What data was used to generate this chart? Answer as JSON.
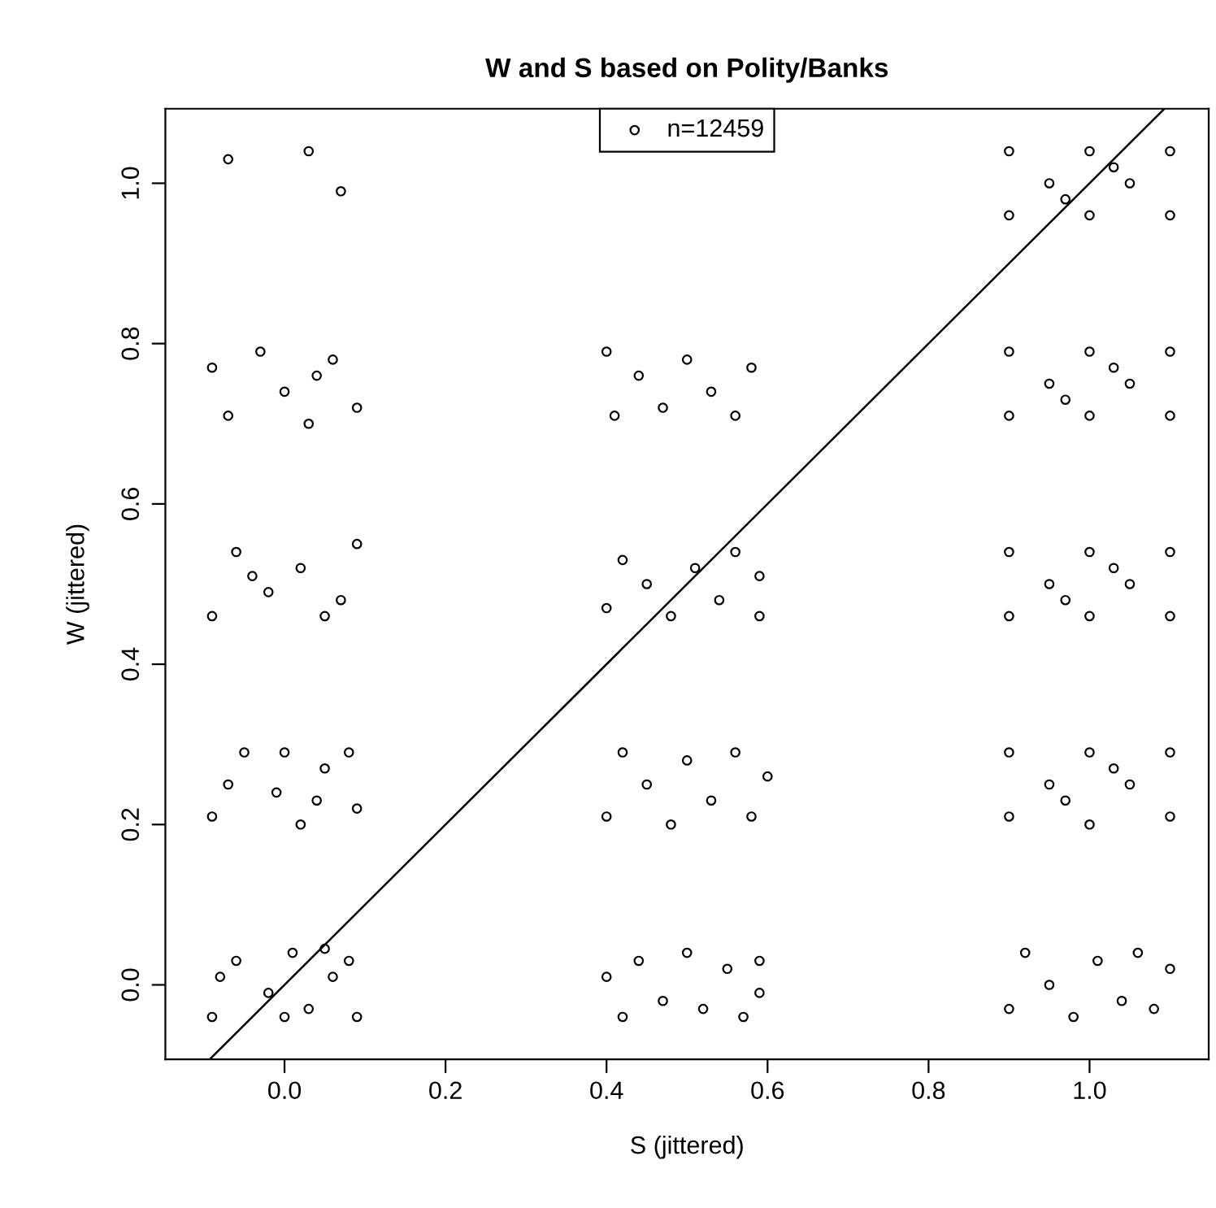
{
  "chart_data": {
    "type": "scatter",
    "title": "W and S based on Polity/Banks",
    "xlabel": "S (jittered)",
    "ylabel": "W (jittered)",
    "xlim": [
      -0.148,
      1.148
    ],
    "ylim": [
      -0.093,
      1.093
    ],
    "xticks": [
      {
        "value": 0,
        "label": "0.0"
      },
      0.2,
      0.4,
      0.6,
      0.8,
      {
        "value": 1,
        "label": "1.0"
      }
    ],
    "yticks": [
      {
        "value": 0,
        "label": "0.0"
      },
      0.2,
      0.4,
      0.6,
      0.8,
      {
        "value": 1,
        "label": "1.0"
      }
    ],
    "grid": false,
    "legend": "top",
    "series": [
      {
        "name": "n=12459",
        "color": "#000000",
        "marker": "circle",
        "x": [
          -0.09,
          -0.06,
          -0.02,
          0.01,
          0.03,
          0.06,
          0.09,
          0.08,
          -0.08,
          0.0,
          0.05,
          -0.09,
          -0.05,
          -0.01,
          0.02,
          0.05,
          0.09,
          0.08,
          -0.07,
          0.0,
          0.04,
          -0.09,
          -0.06,
          -0.02,
          0.02,
          0.05,
          0.09,
          0.07,
          -0.04,
          -0.09,
          -0.07,
          -0.03,
          0.0,
          0.03,
          0.06,
          0.09,
          0.04,
          -0.07,
          0.03,
          0.07,
          0.4,
          0.42,
          0.44,
          0.47,
          0.5,
          0.52,
          0.55,
          0.57,
          0.59,
          0.59,
          0.4,
          0.42,
          0.45,
          0.48,
          0.5,
          0.53,
          0.56,
          0.58,
          0.6,
          0.4,
          0.42,
          0.45,
          0.48,
          0.51,
          0.54,
          0.56,
          0.59,
          0.59,
          0.4,
          0.41,
          0.44,
          0.47,
          0.5,
          0.53,
          0.56,
          0.58,
          0.9,
          0.92,
          0.95,
          0.98,
          1.01,
          1.04,
          1.06,
          1.08,
          1.1,
          0.9,
          0.9,
          0.95,
          1.0,
          1.0,
          1.05,
          1.1,
          1.1,
          0.97,
          1.03,
          0.9,
          0.9,
          0.95,
          1.0,
          1.0,
          1.05,
          1.1,
          1.1,
          0.97,
          1.03,
          0.9,
          0.9,
          0.95,
          1.0,
          1.0,
          1.05,
          1.1,
          1.1,
          0.97,
          1.03,
          0.9,
          0.9,
          0.95,
          1.0,
          1.0,
          1.05,
          1.1,
          1.1,
          0.97,
          1.03
        ],
        "values": [
          -0.04,
          0.03,
          -0.01,
          0.04,
          -0.03,
          0.01,
          -0.04,
          0.03,
          0.01,
          -0.04,
          0.045,
          0.21,
          0.29,
          0.24,
          0.2,
          0.27,
          0.22,
          0.29,
          0.25,
          0.29,
          0.23,
          0.46,
          0.54,
          0.49,
          0.52,
          0.46,
          0.55,
          0.48,
          0.51,
          0.77,
          0.71,
          0.79,
          0.74,
          0.7,
          0.78,
          0.72,
          0.76,
          1.03,
          1.04,
          0.99,
          0.01,
          -0.04,
          0.03,
          -0.02,
          0.04,
          -0.03,
          0.02,
          -0.04,
          0.03,
          -0.01,
          0.21,
          0.29,
          0.25,
          0.2,
          0.28,
          0.23,
          0.29,
          0.21,
          0.26,
          0.47,
          0.53,
          0.5,
          0.46,
          0.52,
          0.48,
          0.54,
          0.46,
          0.51,
          0.79,
          0.71,
          0.76,
          0.72,
          0.78,
          0.74,
          0.71,
          0.77,
          -0.03,
          0.04,
          0.0,
          -0.04,
          0.03,
          -0.02,
          0.04,
          -0.03,
          0.02,
          0.21,
          0.29,
          0.25,
          0.2,
          0.29,
          0.25,
          0.21,
          0.29,
          0.23,
          0.27,
          0.46,
          0.54,
          0.5,
          0.46,
          0.54,
          0.5,
          0.46,
          0.54,
          0.48,
          0.52,
          0.71,
          0.79,
          0.75,
          0.71,
          0.79,
          0.75,
          0.71,
          0.79,
          0.73,
          0.77,
          0.96,
          1.04,
          1.0,
          0.96,
          1.04,
          1.0,
          0.96,
          1.04,
          0.98,
          1.02
        ]
      },
      {
        "type": "line",
        "color": "#000000",
        "marker": "none",
        "x": [
          -0.093,
          1.093
        ],
        "values": [
          -0.093,
          1.093
        ]
      }
    ]
  }
}
